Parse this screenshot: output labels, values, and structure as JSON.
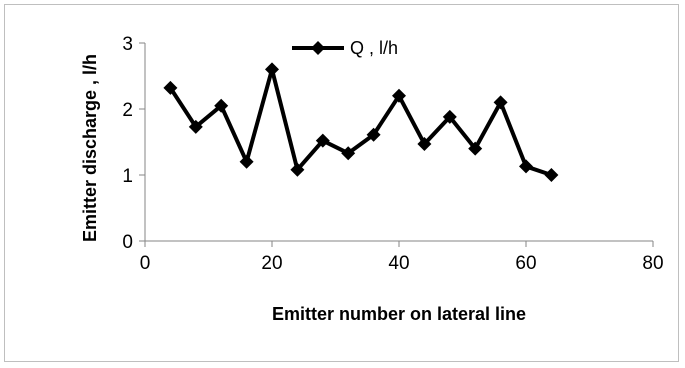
{
  "chart_data": {
    "type": "line",
    "title": "",
    "xlabel": "Emitter number on lateral line",
    "ylabel": "Emitter  discharge , l/h",
    "xlim": [
      0,
      80
    ],
    "ylim": [
      0,
      3
    ],
    "xticks": [
      "0",
      "20",
      "40",
      "60",
      "80"
    ],
    "yticks": [
      "0",
      "1",
      "2",
      "3"
    ],
    "grid": false,
    "legend_position": "top",
    "series": [
      {
        "name": "Q , l/h",
        "color": "#000000",
        "marker": "diamond",
        "x": [
          4,
          8,
          12,
          16,
          20,
          24,
          28,
          32,
          36,
          40,
          44,
          48,
          52,
          56,
          60,
          64
        ],
        "y": [
          2.32,
          1.73,
          2.05,
          1.2,
          2.6,
          1.08,
          1.52,
          1.33,
          1.61,
          2.2,
          1.47,
          1.88,
          1.4,
          2.1,
          1.13,
          1.0
        ]
      }
    ]
  }
}
